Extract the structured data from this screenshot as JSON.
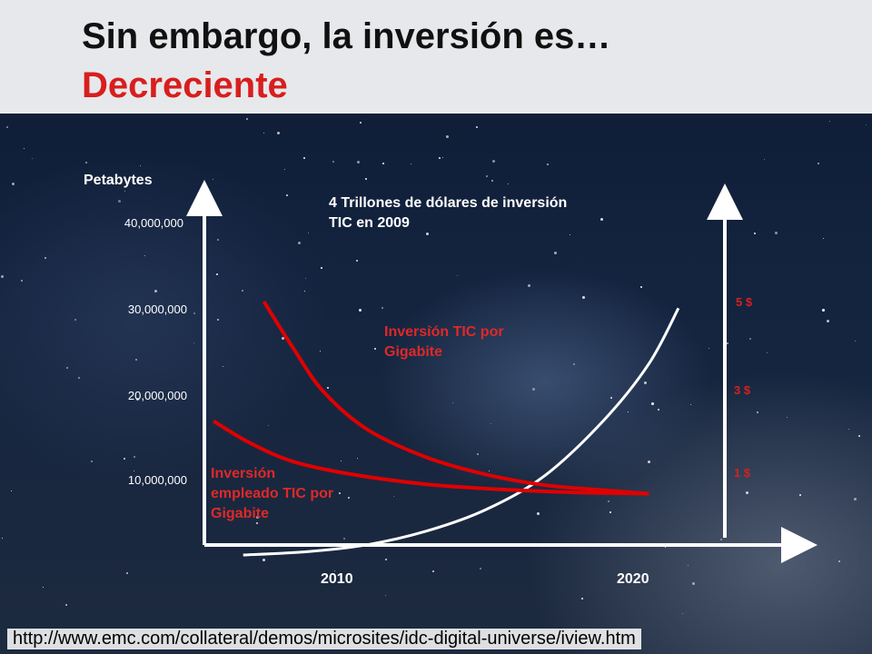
{
  "title": {
    "line1": "Sin embargo, la inversión es…",
    "line2": "Decreciente"
  },
  "colors": {
    "accent_red": "#d81e1e",
    "curve_white": "#ffffff",
    "curve_red": "#e00000"
  },
  "chart_data": {
    "type": "line",
    "ylabel": "Petabytes",
    "y_ticks": [
      "40,000,000",
      "30,000,000",
      "20,000,000",
      "10,000,000"
    ],
    "x_ticks": [
      "2010",
      "2020"
    ],
    "right_ticks": [
      "5 $",
      "3 $",
      "1 $"
    ],
    "annotations": {
      "total": "4 Trillones de dólares de inversión TIC en 2009",
      "per_gigabyte": "Inversión TIC por Gigabite",
      "per_employee": "Inversión empleado TIC por Gigabite"
    },
    "series": [
      {
        "x": [
          2006.8,
          2009,
          2011,
          2013,
          2015,
          2017,
          2019,
          2020.5,
          2021.5
        ],
        "y": [
          1200000,
          1600000,
          2400000,
          4000000,
          6500000,
          10500000,
          17000000,
          23500000,
          30000000
        ]
      },
      {
        "x": [
          2007.5,
          2008.5,
          2009.5,
          2011,
          2013,
          2015,
          2017,
          2019,
          2020.5
        ],
        "y": [
          5,
          3.9,
          2.9,
          2.0,
          1.35,
          0.95,
          0.7,
          0.58,
          0.5
        ]
      },
      {
        "x": [
          2005.8,
          2007,
          2008.5,
          2010.5,
          2013,
          2015.5,
          2018,
          2020.5
        ],
        "y": [
          2.2,
          1.7,
          1.25,
          0.95,
          0.72,
          0.6,
          0.53,
          0.5
        ]
      }
    ]
  },
  "footer": {
    "url": "http://www.emc.com/collateral/demos/microsites/idc-digital-universe/iview.htm"
  }
}
